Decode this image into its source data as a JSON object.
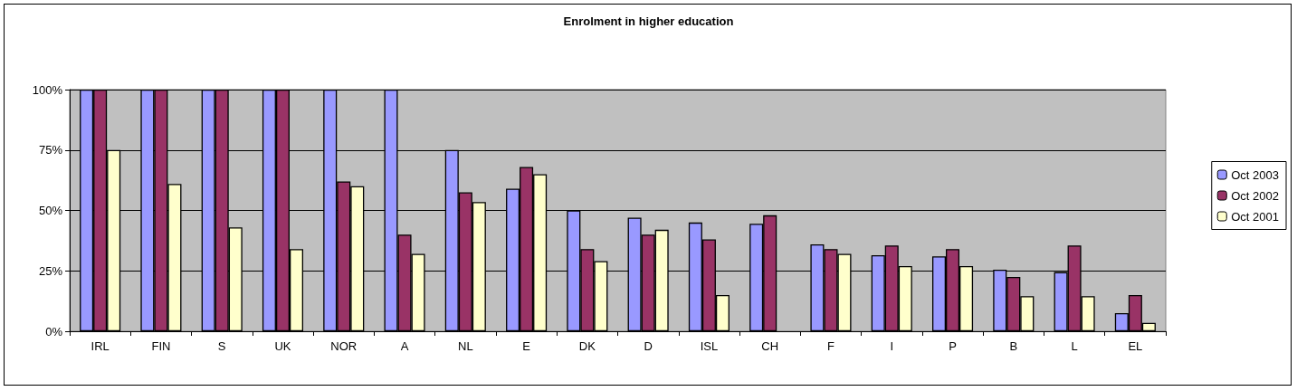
{
  "chart_data": {
    "type": "bar",
    "title": "Enrolment in higher education",
    "categories": [
      "IRL",
      "FIN",
      "S",
      "UK",
      "NOR",
      "A",
      "NL",
      "E",
      "DK",
      "D",
      "ISL",
      "CH",
      "F",
      "I",
      "P",
      "B",
      "L",
      "EL"
    ],
    "series": [
      {
        "name": "Oct 2003",
        "color": "#9999ff",
        "values": [
          100,
          100,
          100,
          100,
          100,
          100,
          75,
          59,
          50,
          47,
          45,
          44.5,
          36,
          31.5,
          31,
          25.5,
          24.5,
          7.5
        ]
      },
      {
        "name": "Oct 2002",
        "color": "#993366",
        "values": [
          100,
          100,
          100,
          100,
          62,
          40,
          57.5,
          68,
          34,
          40,
          38,
          48,
          34,
          35.5,
          34,
          22.5,
          35.5,
          15
        ]
      },
      {
        "name": "Oct 2001",
        "color": "#ffffcc",
        "values": [
          75,
          61,
          43,
          34,
          60,
          32,
          53.5,
          65,
          29,
          42,
          15,
          null,
          32,
          27,
          27,
          14.5,
          14.5,
          3.5
        ]
      }
    ],
    "ylim": [
      0,
      100
    ],
    "yticks": [
      {
        "value": 0,
        "label": "0%"
      },
      {
        "value": 25,
        "label": "25%"
      },
      {
        "value": 50,
        "label": "50%"
      },
      {
        "value": 75,
        "label": "75%"
      },
      {
        "value": 100,
        "label": "100%"
      }
    ],
    "grid": "y",
    "legend": "right"
  }
}
